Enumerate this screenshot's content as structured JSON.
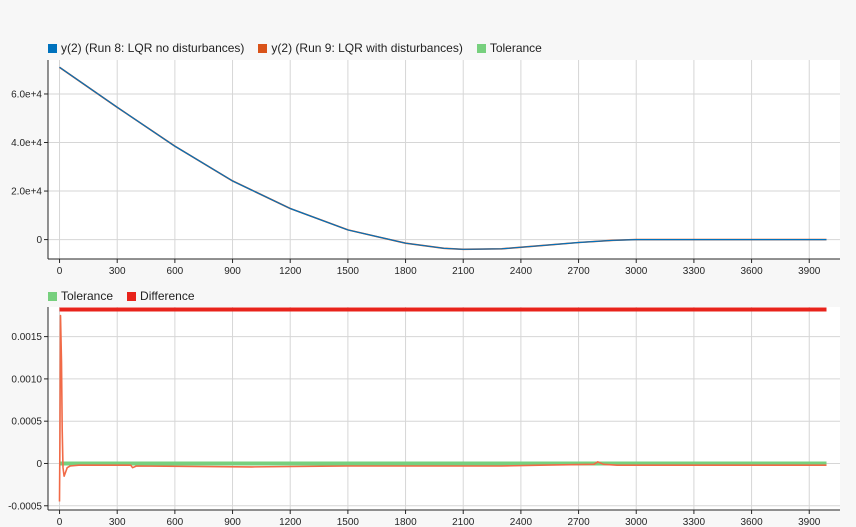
{
  "colors": {
    "run8": "#0072bd",
    "run9": "#d95319",
    "tolerance": "#77d07e",
    "difference": "#e8231b",
    "difference_curve": "#f16a47",
    "grid": "#d6d6d6",
    "axis": "#262626"
  },
  "chart_data": [
    {
      "type": "line",
      "title": "",
      "legend_placement": "top-left",
      "legend": [
        {
          "key": "run8",
          "label": "y(2) (Run 8: LQR no disturbances)"
        },
        {
          "key": "run9",
          "label": "y(2) (Run 9: LQR with disturbances)"
        },
        {
          "key": "tolerance",
          "label": "Tolerance"
        }
      ],
      "xlim": [
        -60,
        4060
      ],
      "ylim": [
        -8000,
        74000
      ],
      "grid": true,
      "x_ticks": [
        0,
        300,
        600,
        900,
        1200,
        1500,
        1800,
        2100,
        2400,
        2700,
        3000,
        3300,
        3600,
        3900
      ],
      "x_tick_labels": [
        "0",
        "300",
        "600",
        "900",
        "1200",
        "1500",
        "1800",
        "2100",
        "2400",
        "2700",
        "3000",
        "3300",
        "3600",
        "3900"
      ],
      "y_ticks": [
        0,
        20000,
        40000,
        60000
      ],
      "y_tick_labels": [
        "0",
        "2.0e+4",
        "4.0e+4",
        "6.0e+4"
      ],
      "series": [
        {
          "name": "y(2) (Run 9: LQR with disturbances)",
          "color_key": "run9",
          "points": [
            [
              0,
              71000
            ],
            [
              300,
              54500
            ],
            [
              600,
              38500
            ],
            [
              900,
              24200
            ],
            [
              1200,
              12800
            ],
            [
              1500,
              4000
            ],
            [
              1800,
              -1500
            ],
            [
              2000,
              -3600
            ],
            [
              2100,
              -4000
            ],
            [
              2300,
              -3800
            ],
            [
              2500,
              -2500
            ],
            [
              2700,
              -1200
            ],
            [
              2880,
              -300
            ],
            [
              3000,
              0
            ],
            [
              3990,
              0
            ]
          ]
        },
        {
          "name": "y(2) (Run 8: LQR no disturbances)",
          "color_key": "run8",
          "points": [
            [
              0,
              71000
            ],
            [
              300,
              54500
            ],
            [
              600,
              38500
            ],
            [
              900,
              24200
            ],
            [
              1200,
              12800
            ],
            [
              1500,
              4000
            ],
            [
              1800,
              -1500
            ],
            [
              2000,
              -3600
            ],
            [
              2100,
              -4000
            ],
            [
              2300,
              -3800
            ],
            [
              2500,
              -2500
            ],
            [
              2700,
              -1200
            ],
            [
              2880,
              -300
            ],
            [
              3000,
              0
            ],
            [
              3990,
              0
            ]
          ]
        }
      ]
    },
    {
      "type": "line",
      "title": "",
      "legend_placement": "top-left",
      "legend": [
        {
          "key": "tolerance",
          "label": "Tolerance"
        },
        {
          "key": "difference",
          "label": "Difference"
        }
      ],
      "xlim": [
        -60,
        4060
      ],
      "ylim": [
        -0.00055,
        0.00185
      ],
      "grid": true,
      "x_ticks": [
        0,
        300,
        600,
        900,
        1200,
        1500,
        1800,
        2100,
        2400,
        2700,
        3000,
        3300,
        3600,
        3900
      ],
      "x_tick_labels": [
        "0",
        "300",
        "600",
        "900",
        "1200",
        "1500",
        "1800",
        "2100",
        "2400",
        "2700",
        "3000",
        "3300",
        "3600",
        "3900"
      ],
      "y_ticks": [
        -0.0005,
        0,
        0.0005,
        0.001,
        0.0015
      ],
      "y_tick_labels": [
        "-0.0005",
        "0",
        "0.0005",
        "0.0010",
        "0.0015"
      ],
      "series": [
        {
          "name": "Tolerance",
          "color_key": "tolerance",
          "points": [
            [
              0,
              0
            ],
            [
              3990,
              0
            ]
          ]
        },
        {
          "name": "Difference",
          "color_key": "difference_curve",
          "points": [
            [
              0,
              -0.00045
            ],
            [
              2,
              0.00025
            ],
            [
              5,
              0.00175
            ],
            [
              10,
              0.0012
            ],
            [
              14,
              0.0004
            ],
            [
              18,
              -5e-05
            ],
            [
              24,
              -0.00015
            ],
            [
              32,
              -0.0001
            ],
            [
              40,
              -5e-05
            ],
            [
              55,
              -3e-05
            ],
            [
              100,
              -2e-05
            ],
            [
              370,
              -2e-05
            ],
            [
              380,
              -5e-05
            ],
            [
              400,
              -3e-05
            ],
            [
              1000,
              -4e-05
            ],
            [
              1500,
              -3e-05
            ],
            [
              2000,
              -3e-05
            ],
            [
              2300,
              -3e-05
            ],
            [
              2500,
              -2e-05
            ],
            [
              2780,
              -1e-05
            ],
            [
              2800,
              2e-05
            ],
            [
              2830,
              -1e-05
            ],
            [
              2900,
              -2e-05
            ],
            [
              3990,
              -2e-05
            ]
          ]
        },
        {
          "name": "Difference",
          "color_key": "difference",
          "band": true,
          "points": [
            [
              0,
              0.00182
            ],
            [
              3990,
              0.00182
            ]
          ]
        }
      ]
    }
  ]
}
